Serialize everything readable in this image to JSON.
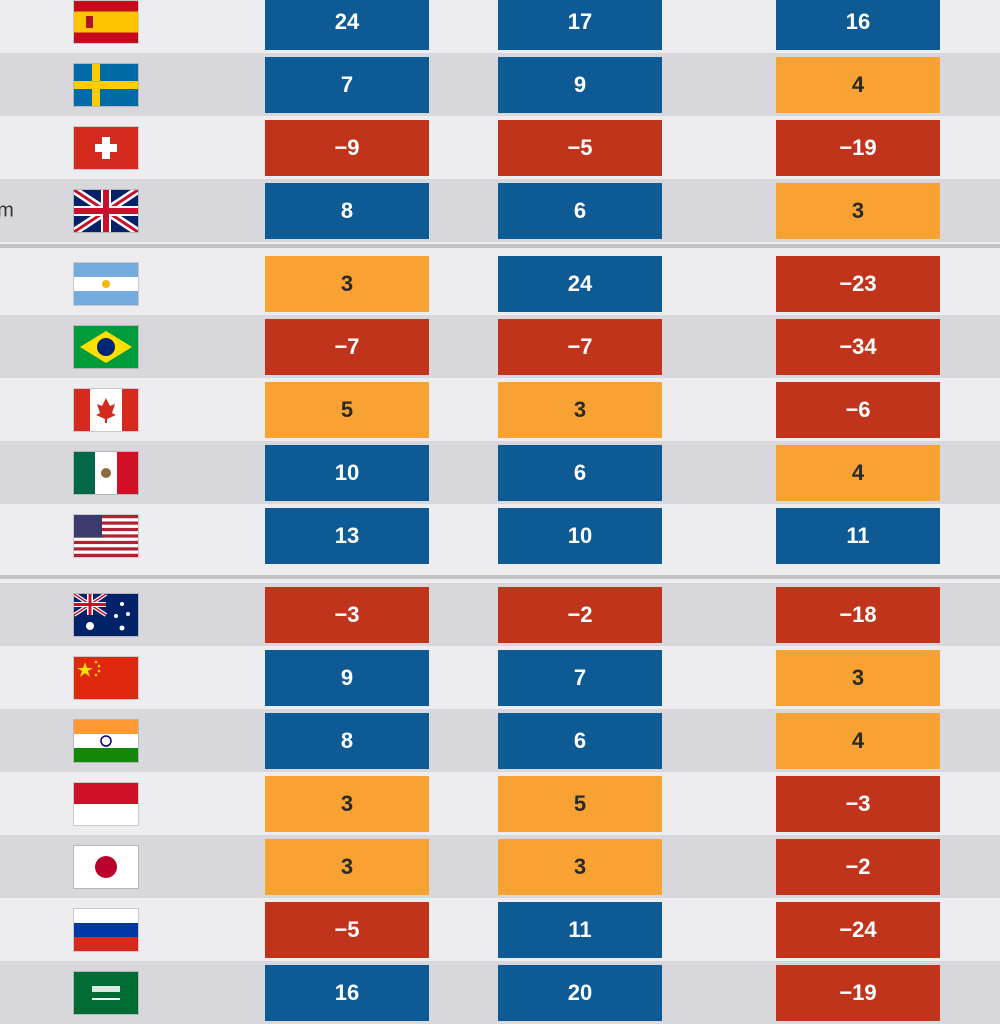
{
  "colors": {
    "blue": "#0e5a94",
    "orange": "#f7a233",
    "red": "#c0341c"
  },
  "sections": [
    {
      "rows": [
        {
          "flag": "spain",
          "label": "",
          "values": [
            "24",
            "17",
            "16"
          ],
          "colors": [
            "blue",
            "blue",
            "blue"
          ]
        },
        {
          "flag": "sweden",
          "label": "",
          "values": [
            "7",
            "9",
            "4"
          ],
          "colors": [
            "blue",
            "blue",
            "orange"
          ]
        },
        {
          "flag": "switzerland",
          "label": "",
          "values": [
            "−9",
            "−5",
            "−19"
          ],
          "colors": [
            "red",
            "red",
            "red"
          ]
        },
        {
          "flag": "uk",
          "label": "om",
          "values": [
            "8",
            "6",
            "3"
          ],
          "colors": [
            "blue",
            "blue",
            "orange"
          ]
        }
      ]
    },
    {
      "rows": [
        {
          "flag": "argentina",
          "label": "",
          "values": [
            "3",
            "24",
            "−23"
          ],
          "colors": [
            "orange",
            "blue",
            "red"
          ]
        },
        {
          "flag": "brazil",
          "label": "",
          "values": [
            "−7",
            "−7",
            "−34"
          ],
          "colors": [
            "red",
            "red",
            "red"
          ]
        },
        {
          "flag": "canada",
          "label": "",
          "values": [
            "5",
            "3",
            "−6"
          ],
          "colors": [
            "orange",
            "orange",
            "red"
          ]
        },
        {
          "flag": "mexico",
          "label": "",
          "values": [
            "10",
            "6",
            "4"
          ],
          "colors": [
            "blue",
            "blue",
            "orange"
          ]
        },
        {
          "flag": "usa",
          "label": "",
          "values": [
            "13",
            "10",
            "11"
          ],
          "colors": [
            "blue",
            "blue",
            "blue"
          ]
        }
      ]
    },
    {
      "rows": [
        {
          "flag": "australia",
          "label": "",
          "values": [
            "−3",
            "−2",
            "−18"
          ],
          "colors": [
            "red",
            "red",
            "red"
          ]
        },
        {
          "flag": "china",
          "label": "",
          "values": [
            "9",
            "7",
            "3"
          ],
          "colors": [
            "blue",
            "blue",
            "orange"
          ]
        },
        {
          "flag": "india",
          "label": "",
          "values": [
            "8",
            "6",
            "4"
          ],
          "colors": [
            "blue",
            "blue",
            "orange"
          ]
        },
        {
          "flag": "indonesia",
          "label": "",
          "values": [
            "3",
            "5",
            "−3"
          ],
          "colors": [
            "orange",
            "orange",
            "red"
          ]
        },
        {
          "flag": "japan",
          "label": "",
          "values": [
            "3",
            "3",
            "−2"
          ],
          "colors": [
            "orange",
            "orange",
            "red"
          ]
        },
        {
          "flag": "russia",
          "label": "",
          "values": [
            "−5",
            "11",
            "−24"
          ],
          "colors": [
            "red",
            "blue",
            "red"
          ]
        },
        {
          "flag": "saudi-arabia",
          "label": "",
          "values": [
            "16",
            "20",
            "−19"
          ],
          "colors": [
            "blue",
            "blue",
            "red"
          ]
        }
      ]
    }
  ]
}
